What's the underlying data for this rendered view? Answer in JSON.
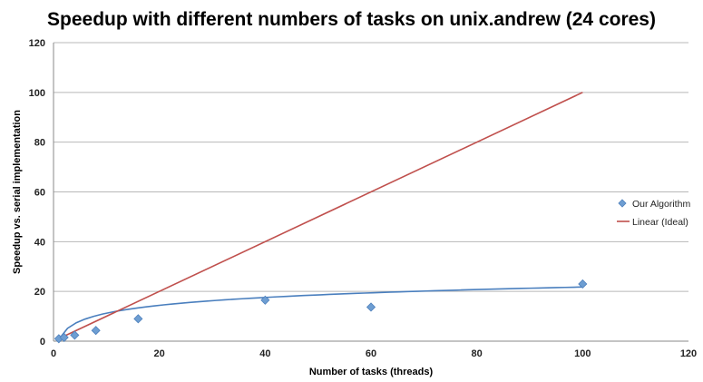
{
  "chart_data": {
    "type": "scatter",
    "title": "Speedup with different numbers of tasks on unix.andrew (24 cores)",
    "xlabel": "Number of tasks (threads)",
    "ylabel": "Speedup vs. serial implementation",
    "xlim": [
      0,
      120
    ],
    "ylim": [
      0,
      120
    ],
    "xticks": [
      0,
      20,
      40,
      60,
      80,
      100,
      120
    ],
    "yticks": [
      0,
      20,
      40,
      60,
      80,
      100,
      120
    ],
    "grid": "horizontal",
    "legend_position": "right",
    "series": [
      {
        "name": "Our Algorithm",
        "kind": "scatter",
        "marker": "diamond",
        "color": "#6E9ED2",
        "x": [
          1,
          2,
          4,
          8,
          16,
          40,
          60,
          100
        ],
        "y": [
          1,
          1.5,
          2.4,
          4.3,
          9,
          16.5,
          13.7,
          23
        ]
      },
      {
        "name": "Linear (Ideal)",
        "kind": "line",
        "color": "#C0504D",
        "x": [
          1,
          100
        ],
        "y": [
          1,
          100
        ]
      }
    ],
    "trendline": {
      "series": "Our Algorithm",
      "type": "logarithmic",
      "color": "#4A7FBE",
      "x_range": [
        1,
        100
      ],
      "a": 0.72,
      "b": 4.57
    }
  }
}
